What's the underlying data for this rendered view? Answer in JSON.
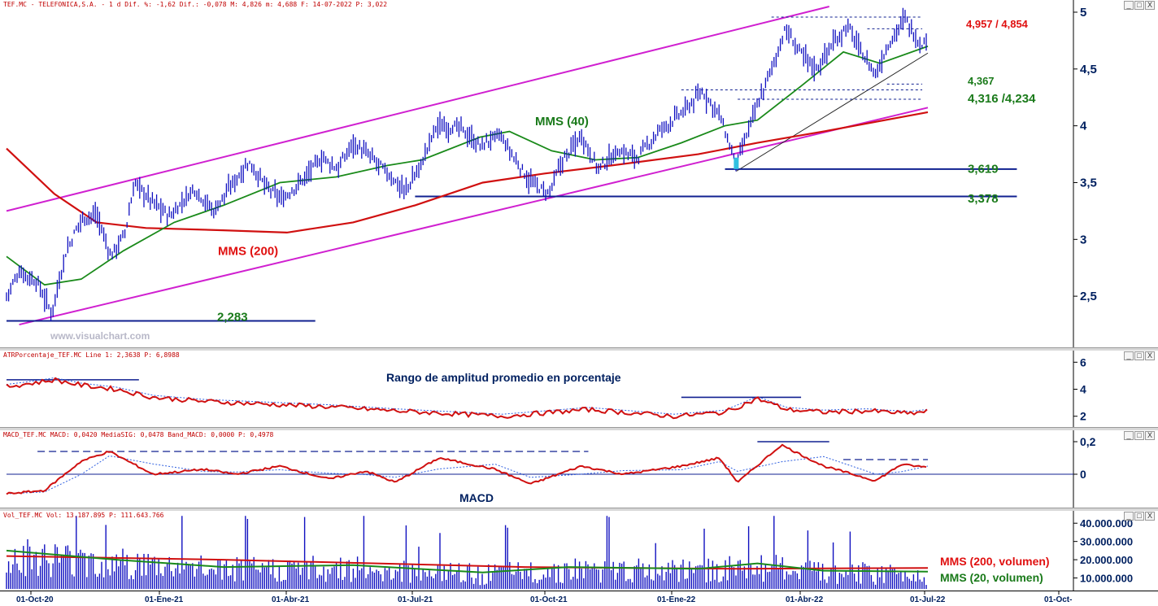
{
  "header": {
    "main": "TEF.MC - TELEFONICA,S.A. -  1 d Dif. %: -1,62  Dif.: -0,078  M: 4,826  m: 4,688  F: 14-07-2022  P: 3,022",
    "atr": "ATRPorcentaje_TEF.MC  Line 1: 2,3638  P: 6,8988",
    "macd": "MACD_TEF.MC  MACD: 0,0420  MediaSIG: 0,0478  Band_MACD: 0,0000  P: 0,4978",
    "vol": "Vol_TEF.MC  Vol: 13.187.895  P: 111.643.766"
  },
  "watermark": "www.visualchart.com",
  "window_buttons": [
    "_",
    "□",
    "X"
  ],
  "icons": {
    "minimize": "minimize-icon",
    "maximize": "maximize-icon",
    "close": "close-icon"
  },
  "colors": {
    "price": "#1010c0",
    "mms40": "#1a8a1a",
    "mms200": "#d01010",
    "channel": "#d020d0",
    "level": "#102090",
    "annot_red": "#e01010",
    "annot_green": "#1a7a1a",
    "signal": "#3060e0"
  },
  "chart_data": [
    {
      "type": "line",
      "title": "TEF.MC - TELEFONICA,S.A.",
      "ylim": [
        2.1,
        5.05
      ],
      "yticks": [
        "5",
        "4,5",
        "4",
        "3,5",
        "3",
        "2,5"
      ],
      "yticks_values": [
        5,
        4.5,
        4,
        3.5,
        3,
        2.5
      ],
      "x_dates": [
        "01-Oct-20",
        "01-Ene-21",
        "01-Abr-21",
        "01-Jul-21",
        "01-Oct-21",
        "01-Ene-22",
        "01-Abr-22",
        "01-Jul-22",
        "01-Oct-"
      ],
      "price_path": [
        [
          "2020-09-28",
          2.5
        ],
        [
          "2020-10-07",
          2.72
        ],
        [
          "2020-10-20",
          2.62
        ],
        [
          "2020-10-30",
          2.35
        ],
        [
          "2020-11-09",
          2.88
        ],
        [
          "2020-11-20",
          3.18
        ],
        [
          "2020-12-01",
          3.22
        ],
        [
          "2020-12-11",
          2.85
        ],
        [
          "2020-12-21",
          3.05
        ],
        [
          "2020-12-28",
          3.5
        ],
        [
          "2021-01-08",
          3.35
        ],
        [
          "2021-01-22",
          3.2
        ],
        [
          "2021-02-08",
          3.45
        ],
        [
          "2021-02-22",
          3.25
        ],
        [
          "2021-03-08",
          3.5
        ],
        [
          "2021-03-19",
          3.68
        ],
        [
          "2021-04-01",
          3.45
        ],
        [
          "2021-04-12",
          3.35
        ],
        [
          "2021-04-28",
          3.55
        ],
        [
          "2021-05-10",
          3.72
        ],
        [
          "2021-05-21",
          3.62
        ],
        [
          "2021-06-01",
          3.85
        ],
        [
          "2021-06-14",
          3.72
        ],
        [
          "2021-06-28",
          3.55
        ],
        [
          "2021-07-08",
          3.42
        ],
        [
          "2021-07-19",
          3.65
        ],
        [
          "2021-07-30",
          4.0
        ],
        [
          "2021-08-16",
          3.98
        ],
        [
          "2021-08-30",
          3.82
        ],
        [
          "2021-09-13",
          3.92
        ],
        [
          "2021-09-24",
          3.7
        ],
        [
          "2021-10-05",
          3.5
        ],
        [
          "2021-10-18",
          3.4
        ],
        [
          "2021-10-27",
          3.68
        ],
        [
          "2021-11-10",
          3.92
        ],
        [
          "2021-11-22",
          3.62
        ],
        [
          "2021-12-06",
          3.78
        ],
        [
          "2021-12-20",
          3.72
        ],
        [
          "2022-01-04",
          3.95
        ],
        [
          "2022-01-21",
          4.12
        ],
        [
          "2022-02-04",
          4.3
        ],
        [
          "2022-02-16",
          4.1
        ],
        [
          "2022-02-28",
          3.65
        ],
        [
          "2022-03-11",
          4.05
        ],
        [
          "2022-03-25",
          4.5
        ],
        [
          "2022-04-04",
          4.85
        ],
        [
          "2022-04-14",
          4.65
        ],
        [
          "2022-04-26",
          4.5
        ],
        [
          "2022-05-06",
          4.7
        ],
        [
          "2022-05-18",
          4.88
        ],
        [
          "2022-05-30",
          4.6
        ],
        [
          "2022-06-07",
          4.45
        ],
        [
          "2022-06-16",
          4.72
        ],
        [
          "2022-06-28",
          4.95
        ],
        [
          "2022-07-08",
          4.72
        ],
        [
          "2022-07-14",
          4.75
        ]
      ],
      "series": [
        {
          "name": "MMS (40)",
          "values": [
            [
              "2020-09-28",
              2.85
            ],
            [
              "2020-10-25",
              2.6
            ],
            [
              "2020-11-20",
              2.65
            ],
            [
              "2020-12-20",
              2.9
            ],
            [
              "2021-01-25",
              3.15
            ],
            [
              "2021-03-01",
              3.3
            ],
            [
              "2021-04-10",
              3.5
            ],
            [
              "2021-05-20",
              3.55
            ],
            [
              "2021-06-25",
              3.65
            ],
            [
              "2021-07-20",
              3.7
            ],
            [
              "2021-08-30",
              3.9
            ],
            [
              "2021-09-20",
              3.95
            ],
            [
              "2021-10-20",
              3.78
            ],
            [
              "2021-11-20",
              3.7
            ],
            [
              "2021-12-20",
              3.72
            ],
            [
              "2022-01-20",
              3.85
            ],
            [
              "2022-02-20",
              4.0
            ],
            [
              "2022-03-15",
              4.05
            ],
            [
              "2022-04-15",
              4.35
            ],
            [
              "2022-05-15",
              4.65
            ],
            [
              "2022-06-10",
              4.55
            ],
            [
              "2022-07-14",
              4.7
            ]
          ]
        },
        {
          "name": "MMS (200)",
          "values": [
            [
              "2020-09-28",
              3.8
            ],
            [
              "2020-11-01",
              3.4
            ],
            [
              "2020-12-01",
              3.15
            ],
            [
              "2021-01-05",
              3.1
            ],
            [
              "2021-03-01",
              3.08
            ],
            [
              "2021-04-15",
              3.06
            ],
            [
              "2021-06-01",
              3.15
            ],
            [
              "2021-07-15",
              3.3
            ],
            [
              "2021-09-01",
              3.5
            ],
            [
              "2021-10-15",
              3.58
            ],
            [
              "2021-12-01",
              3.65
            ],
            [
              "2022-02-01",
              3.75
            ],
            [
              "2022-03-15",
              3.85
            ],
            [
              "2022-05-01",
              3.95
            ],
            [
              "2022-07-14",
              4.12
            ]
          ]
        }
      ],
      "annotations": {
        "labels": [
          {
            "text": "MMS (200)",
            "date": "2021-02-25",
            "y": 2.9,
            "color": "red"
          },
          {
            "text": "MMS (40)",
            "date": "2021-09-05",
            "y": 4.04,
            "color": "green"
          },
          {
            "text": "2,283",
            "date": "2021-03-20",
            "y": 2.32,
            "color": "green"
          },
          {
            "text": "3,619",
            "date": "2022-06-22",
            "y": 3.62,
            "color": "green"
          },
          {
            "text": "3,378",
            "date": "2022-06-22",
            "y": 3.36,
            "color": "green"
          },
          {
            "text": "4,367",
            "date": "2022-06-22",
            "y": 4.4,
            "color": "green_small"
          },
          {
            "text": "4,316 /4,234",
            "date": "2022-06-22",
            "y": 4.24,
            "color": "green"
          },
          {
            "text": "4,957 / 4,854",
            "date": "2022-06-22",
            "y": 4.9,
            "color": "red"
          }
        ],
        "levels": [
          {
            "value": 2.283,
            "from": "2020-09-28",
            "to": "2021-03-20"
          },
          {
            "value": 3.619,
            "from": "2022-02-20",
            "to": "2022-07-31"
          },
          {
            "value": 3.378,
            "from": "2021-07-15",
            "to": "2022-07-31"
          }
        ],
        "dotted_levels": [
          {
            "value": 4.957,
            "from": "2022-03-25",
            "to": "2022-07-10"
          },
          {
            "value": 4.854,
            "from": "2022-06-01",
            "to": "2022-07-10"
          },
          {
            "value": 4.367,
            "from": "2022-06-15",
            "to": "2022-07-10"
          },
          {
            "value": 4.316,
            "from": "2022-01-20",
            "to": "2022-07-10"
          },
          {
            "value": 4.234,
            "from": "2022-03-01",
            "to": "2022-07-10"
          }
        ],
        "channel": [
          {
            "from": [
              "2020-09-28",
              3.25
            ],
            "to": [
              "2022-05-05",
              5.05
            ]
          },
          {
            "from": [
              "2020-10-07",
              2.25
            ],
            "to": [
              "2022-07-14",
              4.16
            ]
          }
        ],
        "trend_support": {
          "from": [
            "2022-02-28",
            3.6
          ],
          "to": [
            "2022-07-14",
            4.64
          ]
        }
      }
    },
    {
      "type": "line",
      "title": "Rango de amplitud promedio en porcentaje",
      "ylim": [
        1.2,
        6.5
      ],
      "yticks": [
        "6",
        "4",
        "2"
      ],
      "yticks_values": [
        6,
        4,
        2
      ],
      "series": [
        {
          "name": "ATR %",
          "values": [
            [
              "2020-09-28",
              4.2
            ],
            [
              "2020-10-20",
              4.5
            ],
            [
              "2020-11-01",
              4.7
            ],
            [
              "2020-11-20",
              4.3
            ],
            [
              "2020-12-15",
              4.0
            ],
            [
              "2021-01-10",
              3.4
            ],
            [
              "2021-02-15",
              3.1
            ],
            [
              "2021-04-01",
              2.9
            ],
            [
              "2021-05-15",
              2.7
            ],
            [
              "2021-07-01",
              2.4
            ],
            [
              "2021-09-15",
              2.0
            ],
            [
              "2021-11-15",
              2.5
            ],
            [
              "2022-01-15",
              2.0
            ],
            [
              "2022-02-20",
              2.3
            ],
            [
              "2022-03-15",
              3.3
            ],
            [
              "2022-04-05",
              2.5
            ],
            [
              "2022-05-01",
              2.3
            ],
            [
              "2022-06-01",
              2.4
            ],
            [
              "2022-07-01",
              2.2
            ],
            [
              "2022-07-14",
              2.36
            ]
          ]
        }
      ],
      "annotations": {
        "levels": [
          {
            "value": 4.7,
            "from": "2020-09-28",
            "to": "2020-12-31"
          },
          {
            "value": 3.4,
            "from": "2022-01-20",
            "to": "2022-04-15"
          }
        ]
      }
    },
    {
      "type": "line",
      "title": "MACD",
      "ylim": [
        -0.2,
        0.24
      ],
      "yticks": [
        "0,2",
        "0"
      ],
      "yticks_values": [
        0.2,
        0
      ],
      "series": [
        {
          "name": "MACD",
          "values": [
            [
              "2020-09-28",
              -0.12
            ],
            [
              "2020-10-25",
              -0.1
            ],
            [
              "2020-11-20",
              0.08
            ],
            [
              "2020-12-10",
              0.14
            ],
            [
              "2021-01-10",
              0.0
            ],
            [
              "2021-02-15",
              0.03
            ],
            [
              "2021-03-10",
              0.0
            ],
            [
              "2021-04-10",
              0.05
            ],
            [
              "2021-05-15",
              -0.03
            ],
            [
              "2021-06-10",
              0.02
            ],
            [
              "2021-07-01",
              -0.05
            ],
            [
              "2021-08-01",
              0.1
            ],
            [
              "2021-09-10",
              0.03
            ],
            [
              "2021-10-05",
              -0.06
            ],
            [
              "2021-11-10",
              0.05
            ],
            [
              "2021-12-10",
              0.0
            ],
            [
              "2022-01-20",
              0.05
            ],
            [
              "2022-02-16",
              0.1
            ],
            [
              "2022-03-01",
              -0.05
            ],
            [
              "2022-04-01",
              0.18
            ],
            [
              "2022-05-01",
              0.05
            ],
            [
              "2022-06-07",
              -0.04
            ],
            [
              "2022-06-25",
              0.06
            ],
            [
              "2022-07-14",
              0.042
            ]
          ]
        }
      ],
      "annotations": {
        "levels": [
          {
            "value": 0.2,
            "from": "2022-03-15",
            "to": "2022-05-05"
          }
        ],
        "dashed_levels": [
          {
            "value": 0.14,
            "from": "2020-10-20",
            "to": "2021-11-15"
          },
          {
            "value": 0.09,
            "from": "2022-05-15",
            "to": "2022-07-14"
          }
        ]
      }
    },
    {
      "type": "bar",
      "title": "Vol_TEF.MC",
      "ylim": [
        4000000,
        45000000
      ],
      "yticks": [
        "40.000.000",
        "30.000.000",
        "20.000.000",
        "10.000.000"
      ],
      "yticks_values": [
        40000000,
        30000000,
        20000000,
        10000000
      ],
      "series": [
        {
          "name": "MMS (200, volumen)",
          "values": [
            [
              "2020-09-28",
              22000000
            ],
            [
              "2021-03-01",
              20000000
            ],
            [
              "2021-10-01",
              16000000
            ],
            [
              "2022-03-01",
              15000000
            ],
            [
              "2022-07-14",
              15500000
            ]
          ]
        },
        {
          "name": "MMS (20, volumen)",
          "values": [
            [
              "2020-09-28",
              25000000
            ],
            [
              "2020-12-15",
              20000000
            ],
            [
              "2021-03-01",
              16000000
            ],
            [
              "2021-06-01",
              17000000
            ],
            [
              "2021-09-01",
              13000000
            ],
            [
              "2021-11-01",
              16000000
            ],
            [
              "2022-02-01",
              15000000
            ],
            [
              "2022-03-15",
              18000000
            ],
            [
              "2022-05-01",
              14000000
            ],
            [
              "2022-07-14",
              13500000
            ]
          ]
        }
      ]
    }
  ]
}
